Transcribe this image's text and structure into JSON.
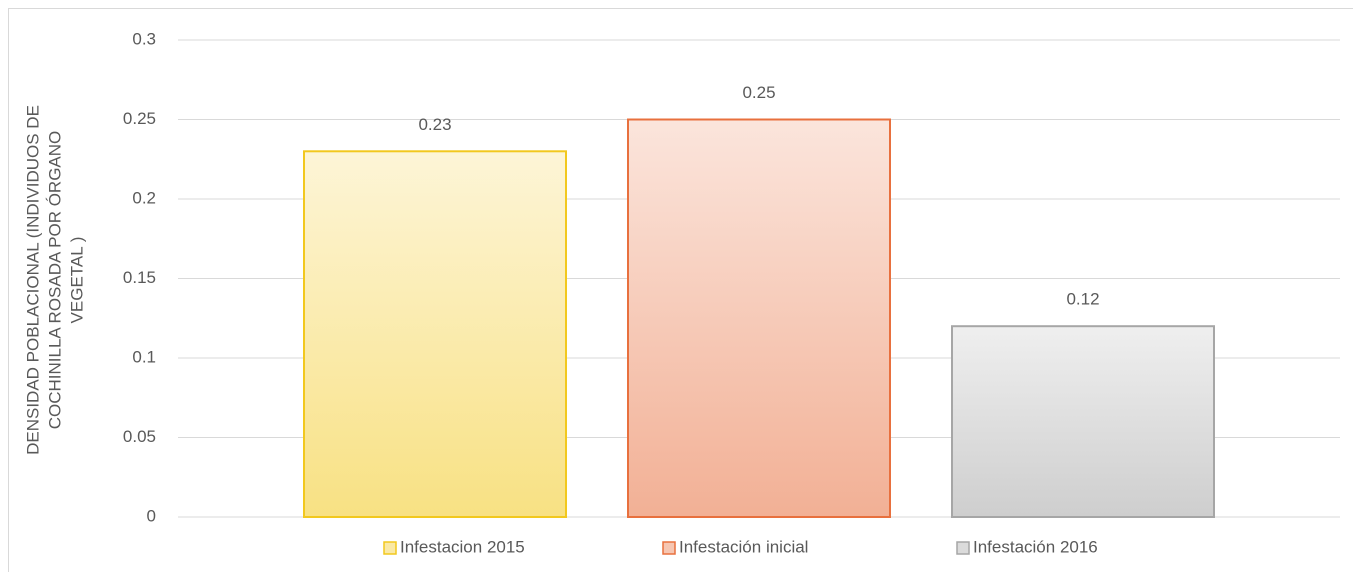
{
  "chart_data": {
    "type": "bar",
    "ylabel": [
      "DENSIDAD POBLACIONAL (INDIVIDUOS DE",
      "COCHINILLA ROSADA POR ÓRGANO",
      "VEGETAL )"
    ],
    "categories": [
      null
    ],
    "series": [
      {
        "name": "Infestacion 2015",
        "color": "#f2c81e",
        "values": [
          0.23
        ]
      },
      {
        "name": "Infestación inicial",
        "color": "#e8703e",
        "values": [
          0.25
        ]
      },
      {
        "name": "Infestación 2016",
        "color": "#a6a6a6",
        "values": [
          0.12
        ]
      }
    ],
    "ylim": [
      0,
      0.3
    ],
    "yticks": [
      0,
      0.05,
      0.1,
      0.15,
      0.2,
      0.25,
      0.3
    ],
    "grid": true,
    "legend": "bottom"
  }
}
